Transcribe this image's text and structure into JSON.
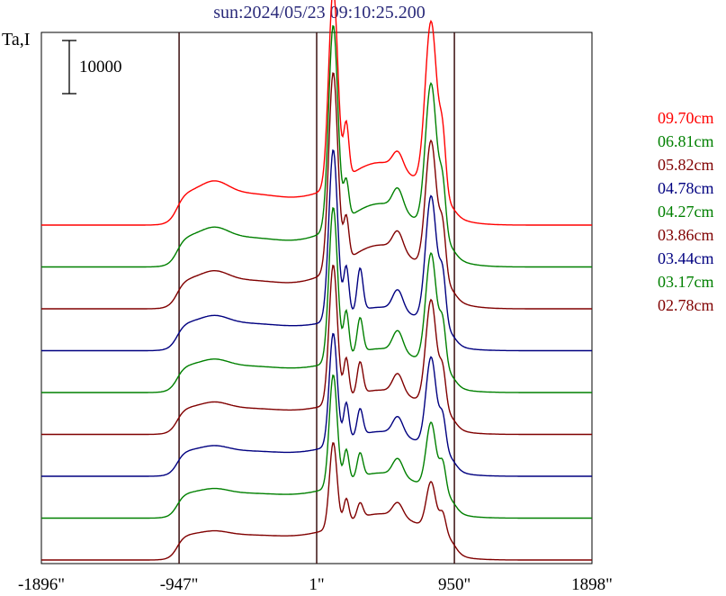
{
  "chart_data": {
    "type": "line",
    "title": "sun:2024/05/23 09:10:25.200",
    "ylabel": "Ta,I",
    "xlabel": "",
    "x_ticks": [
      "-1896\"",
      "-947\"",
      "1\"",
      "950\"",
      "1898\""
    ],
    "x_tick_values": [
      -1896,
      -947,
      1,
      950,
      1898
    ],
    "xlim": [
      -1896,
      1898
    ],
    "vertical_lines": [
      -947,
      1,
      950
    ],
    "scale_bar": {
      "label": "10000",
      "value": 10000
    },
    "grid": false,
    "legend_position": "right",
    "series": [
      {
        "name": "09.70cm",
        "color": "#ff0000",
        "baseline": 0,
        "disk": 2500,
        "w1": 37000,
        "w2": 32000,
        "shelf": 4000,
        "s1": 10000,
        "s2": 10000,
        "s3": 0,
        "sub": 3000
      },
      {
        "name": "06.81cm",
        "color": "#008000",
        "baseline": 0,
        "disk": 2700,
        "w1": 38000,
        "w2": 28000,
        "shelf": 3300,
        "s1": 7000,
        "s2": 9000,
        "s3": 0,
        "sub": 3800
      },
      {
        "name": "05.82cm",
        "color": "#800000",
        "baseline": 0,
        "disk": 2800,
        "w1": 37000,
        "w2": 25000,
        "shelf": 3000,
        "s1": 8000,
        "s2": 9000,
        "s3": 0,
        "sub": 3500
      },
      {
        "name": "04.78cm",
        "color": "#000080",
        "baseline": 0,
        "disk": 3000,
        "w1": 32000,
        "w2": 24000,
        "shelf": 2500,
        "s1": 9000,
        "s2": 9000,
        "s3": 8000,
        "sub": 3800
      },
      {
        "name": "04.27cm",
        "color": "#008000",
        "baseline": 0,
        "disk": 3100,
        "w1": 29000,
        "w2": 21000,
        "shelf": 2200,
        "s1": 8500,
        "s2": 8000,
        "s3": 6500,
        "sub": 3900
      },
      {
        "name": "03.86cm",
        "color": "#800000",
        "baseline": 0,
        "disk": 3200,
        "w1": 26000,
        "w2": 20000,
        "shelf": 2000,
        "s1": 7500,
        "s2": 7000,
        "s3": 6000,
        "sub": 3600
      },
      {
        "name": "03.44cm",
        "color": "#000080",
        "baseline": 0,
        "disk": 3300,
        "w1": 21000,
        "w2": 17000,
        "shelf": 1700,
        "s1": 7000,
        "s2": 6200,
        "s3": 5000,
        "sub": 3300
      },
      {
        "name": "03.17cm",
        "color": "#008000",
        "baseline": 0,
        "disk": 3400,
        "w1": 21000,
        "w2": 12500,
        "shelf": 1500,
        "s1": 6000,
        "s2": 5500,
        "s3": 4500,
        "sub": 3200
      },
      {
        "name": "02.78cm",
        "color": "#800000",
        "baseline": 0,
        "disk": 3600,
        "w1": 16000,
        "w2": 9000,
        "shelf": 1300,
        "s1": 4500,
        "s2": 3800,
        "s3": 2800,
        "sub": 2600
      }
    ]
  }
}
